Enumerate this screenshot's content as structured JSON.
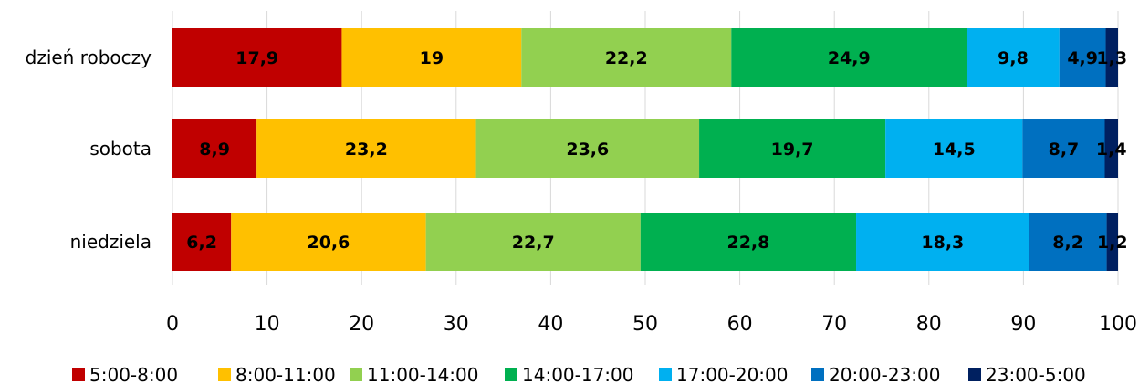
{
  "chart_data": {
    "type": "bar",
    "orientation": "horizontal",
    "stacked": true,
    "categories": [
      "dzień roboczy",
      "sobota",
      "niedziela"
    ],
    "series": [
      {
        "name": "5:00-8:00",
        "color": "#C00000",
        "values": [
          17.9,
          8.9,
          6.2
        ]
      },
      {
        "name": "8:00-11:00",
        "color": "#FFC000",
        "values": [
          19,
          23.2,
          20.6
        ]
      },
      {
        "name": "11:00-14:00",
        "color": "#92D050",
        "values": [
          22.2,
          23.6,
          22.7
        ]
      },
      {
        "name": "14:00-17:00",
        "color": "#00B050",
        "values": [
          24.9,
          19.7,
          22.8
        ]
      },
      {
        "name": "17:00-20:00",
        "color": "#00B0F0",
        "values": [
          9.8,
          14.5,
          18.3
        ]
      },
      {
        "name": "20:00-23:00",
        "color": "#0070C0",
        "values": [
          4.9,
          8.7,
          8.2
        ]
      },
      {
        "name": "23:00-5:00",
        "color": "#002060",
        "values": [
          1.3,
          1.4,
          1.2
        ]
      }
    ],
    "data_labels": [
      [
        "17,9",
        "8,9",
        "6,2"
      ],
      [
        "19",
        "23,2",
        "20,6"
      ],
      [
        "22,2",
        "23,6",
        "22,7"
      ],
      [
        "24,9",
        "19,7",
        "22,8"
      ],
      [
        "9,8",
        "14,5",
        "18,3"
      ],
      [
        "4,9",
        "8,7",
        "8,2"
      ],
      [
        "1,3",
        "1,4",
        "1,2"
      ]
    ],
    "xlim": [
      0,
      100
    ],
    "xticks": [
      0,
      10,
      20,
      30,
      40,
      50,
      60,
      70,
      80,
      90,
      100
    ],
    "grid": "vertical",
    "legend_position": "bottom",
    "title": "",
    "xlabel": "",
    "ylabel": ""
  }
}
